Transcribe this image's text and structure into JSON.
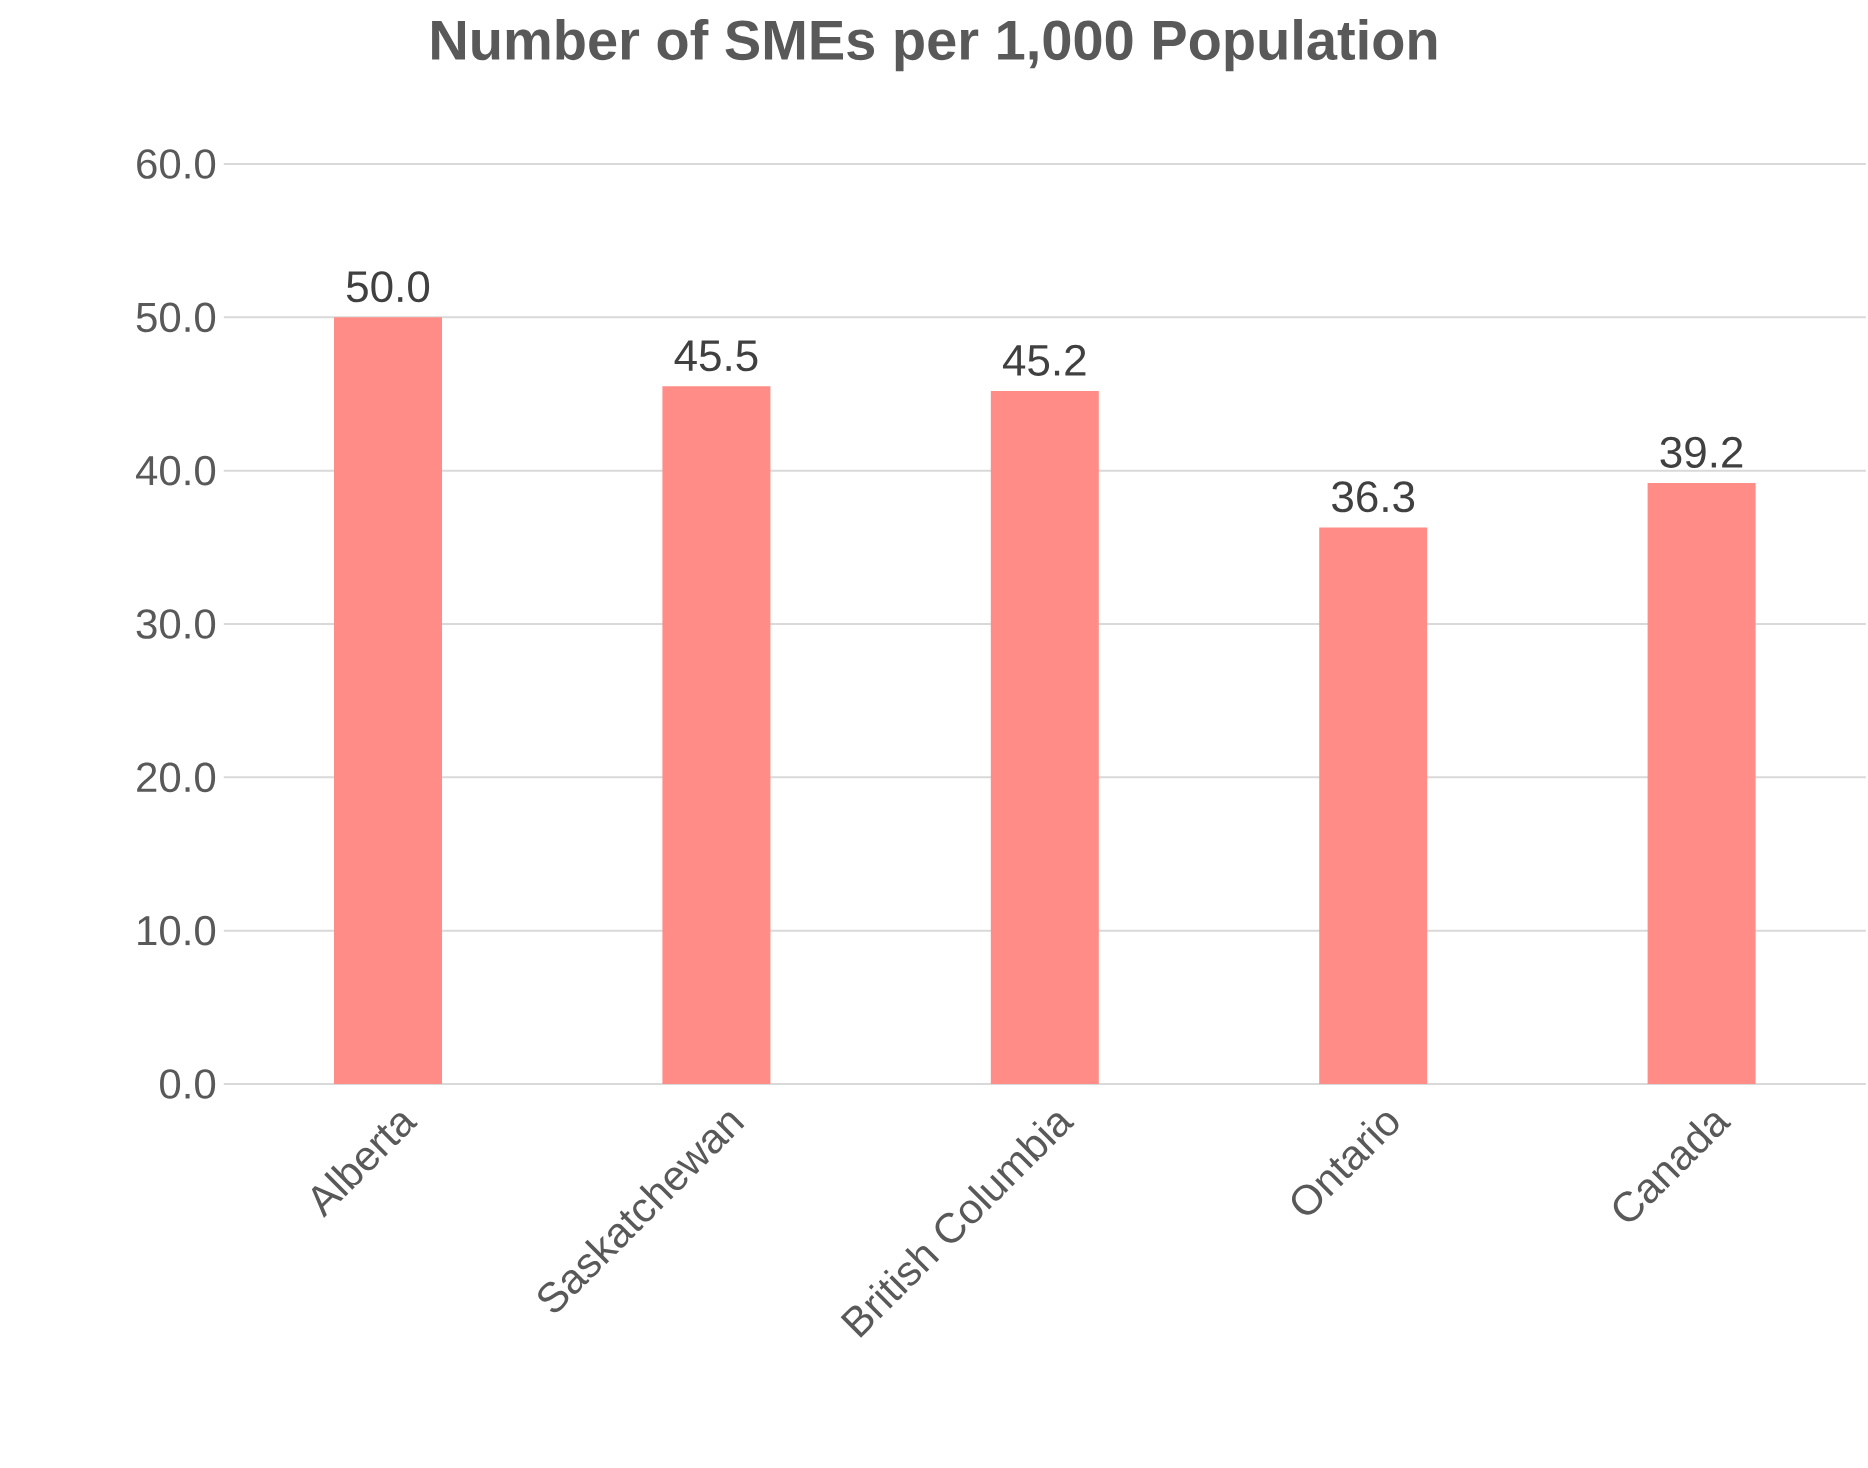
{
  "chart_data": {
    "type": "bar",
    "title": "Number of SMEs per 1,000 Population",
    "categories": [
      "Alberta",
      "Saskatchewan",
      "British Columbia",
      "Ontario",
      "Canada"
    ],
    "values": [
      50.0,
      45.5,
      45.2,
      36.3,
      39.2
    ],
    "color": "#ff8c87",
    "ylim": [
      0,
      60
    ],
    "yticks": [
      {
        "value": 0,
        "label": "0.0"
      },
      {
        "value": 10,
        "label": "10.0"
      },
      {
        "value": 20,
        "label": "20.0"
      },
      {
        "value": 30,
        "label": "30.0"
      },
      {
        "value": 40,
        "label": "40.0"
      },
      {
        "value": 50,
        "label": "50.0"
      },
      {
        "value": 60,
        "label": "60.0"
      }
    ],
    "grid": "y",
    "value_labels": [
      "50.0",
      "45.5",
      "45.2",
      "36.3",
      "39.2"
    ]
  }
}
